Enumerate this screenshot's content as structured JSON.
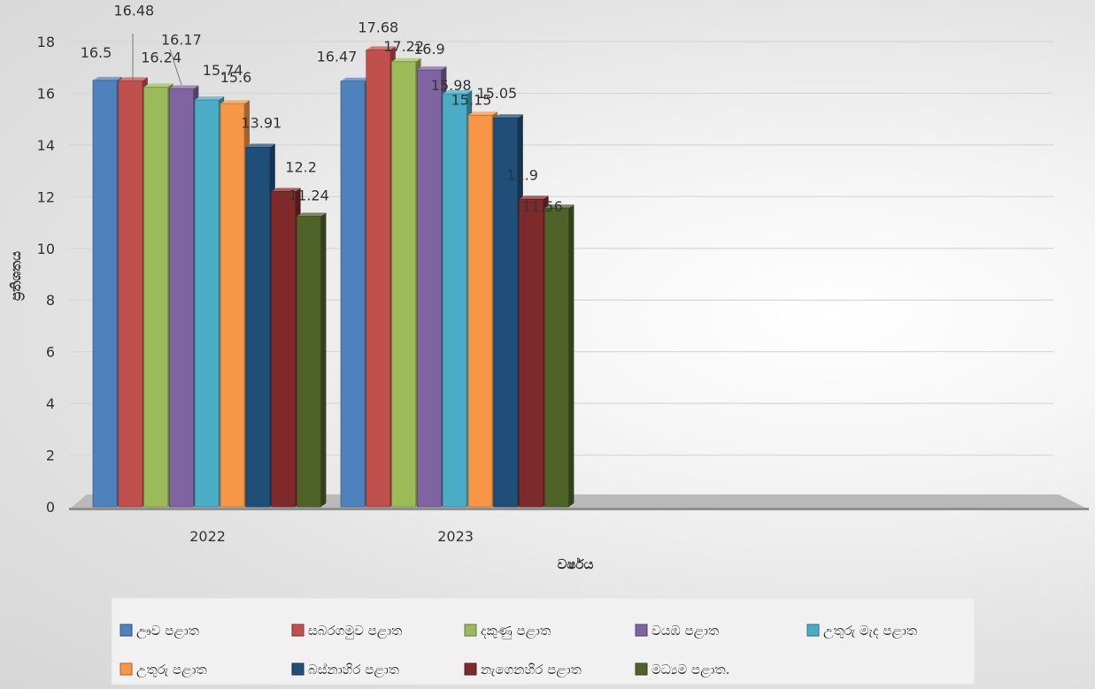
{
  "chart_data": {
    "type": "bar",
    "title": "",
    "xlabel": "වර්ෂය",
    "ylabel": "ප්‍රතිශතය",
    "categories": [
      "2022",
      "2023"
    ],
    "ylim": [
      0,
      18
    ],
    "yticks": [
      0,
      2,
      4,
      6,
      8,
      10,
      12,
      14,
      16,
      18
    ],
    "grid": true,
    "legend_position": "bottom",
    "series": [
      {
        "name": "ඌව පළාත",
        "color": "#4f81bd",
        "values": [
          16.5,
          16.47
        ]
      },
      {
        "name": "සබරගමුව පළාත",
        "color": "#c0504d",
        "values": [
          16.48,
          17.68
        ]
      },
      {
        "name": "දකුණු පළාත",
        "color": "#9bbb59",
        "values": [
          16.24,
          17.22
        ]
      },
      {
        "name": "වයඹ පළාත",
        "color": "#8064a2",
        "values": [
          16.17,
          16.9
        ]
      },
      {
        "name": "උතුරු මැද පළාත",
        "color": "#4bacc6",
        "values": [
          15.74,
          15.98
        ]
      },
      {
        "name": "උතුරු පළාත",
        "color": "#f79646",
        "values": [
          15.6,
          15.15
        ]
      },
      {
        "name": "බස්නාහිර පළාත",
        "color": "#1f4e79",
        "values": [
          13.91,
          15.05
        ]
      },
      {
        "name": "නැගෙනහිර පළාත",
        "color": "#7f2a2a",
        "values": [
          12.2,
          11.9
        ]
      },
      {
        "name": "මධ්‍යම පළාත.",
        "color": "#4f6228",
        "values": [
          11.24,
          11.56
        ]
      }
    ]
  }
}
